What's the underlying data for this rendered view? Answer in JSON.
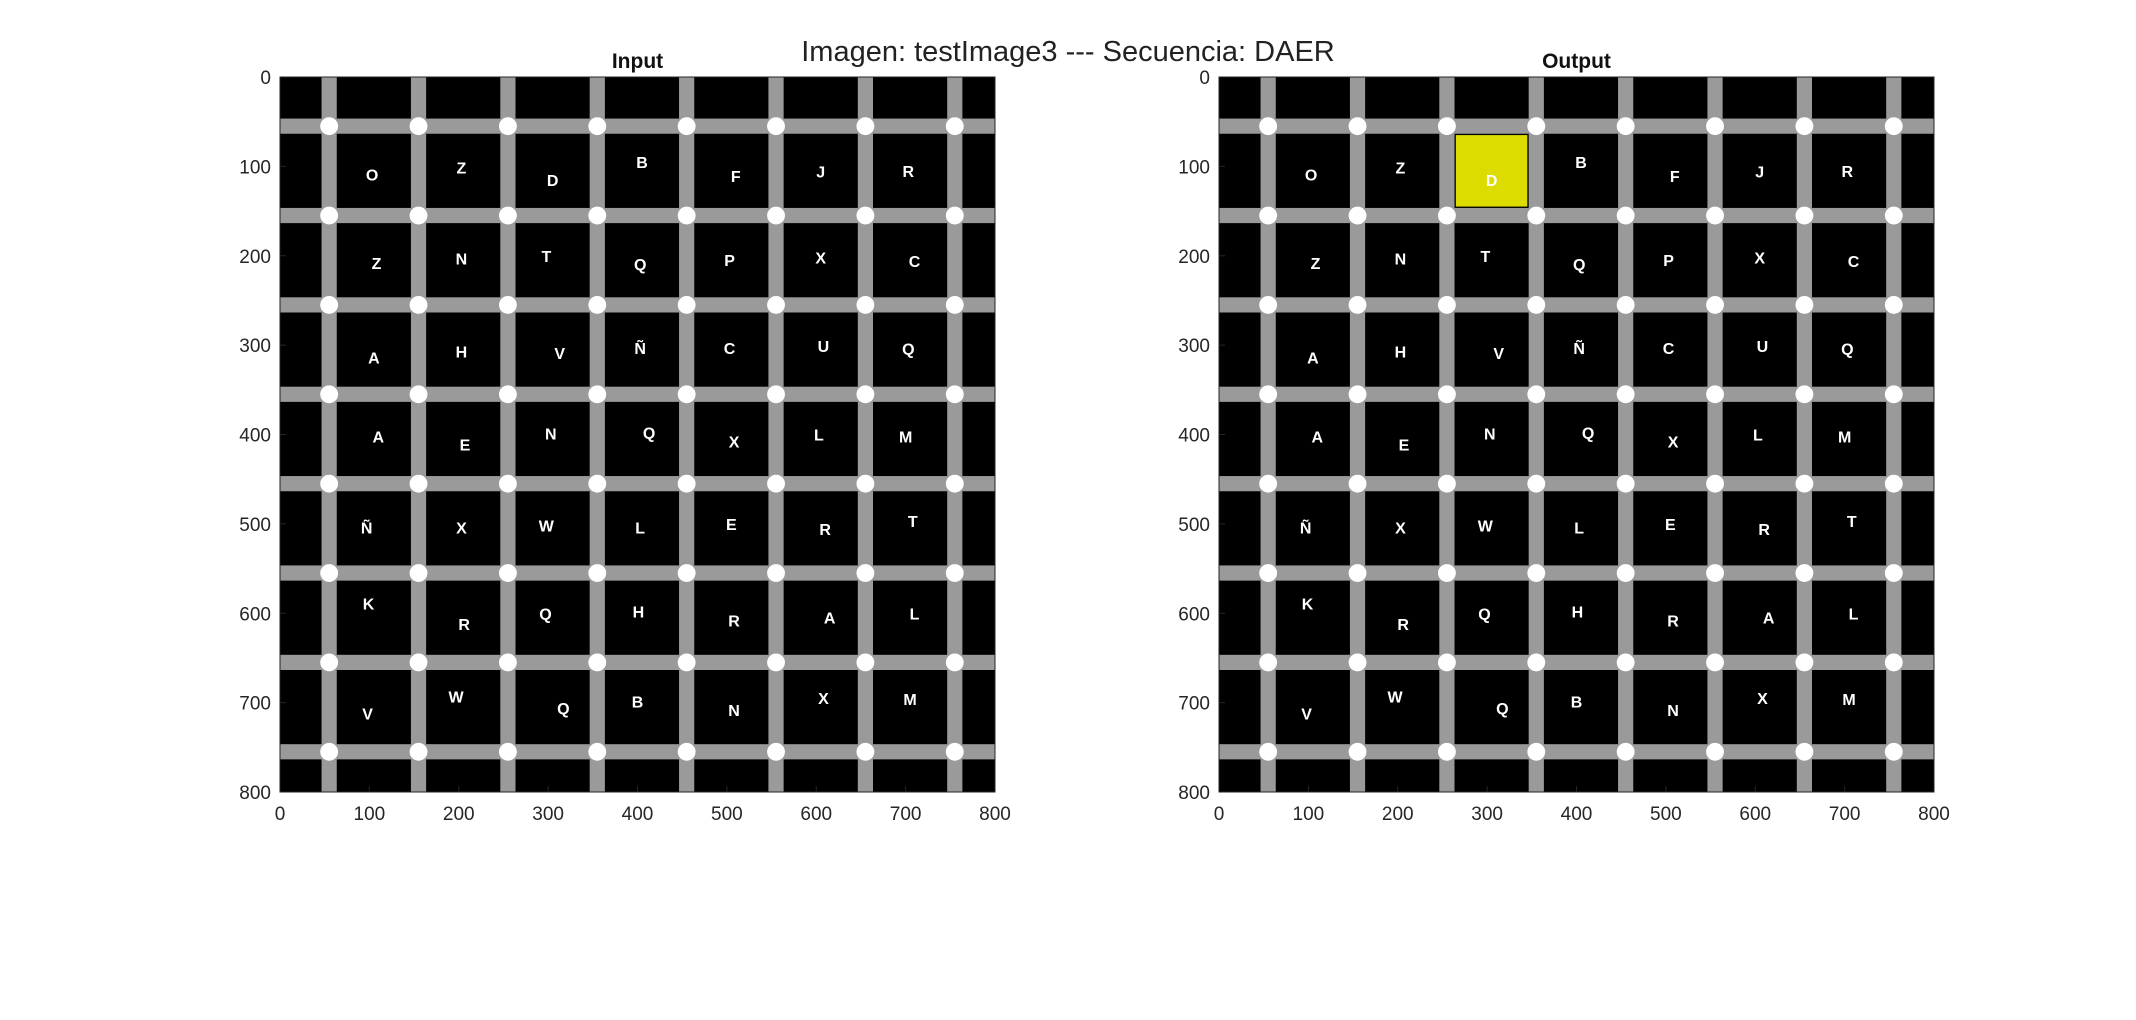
{
  "window_title": "Imagen: testImage3 --- Secuencia: DAER",
  "colors": {
    "background": "#000000",
    "grid_line": "#9a9a9a",
    "intersection_dot": "#ffffff",
    "letter": "#ffffff",
    "highlight": "#dcdc00"
  },
  "axes": {
    "x_ticks": [
      "0",
      "100",
      "200",
      "300",
      "400",
      "500",
      "600",
      "700",
      "800"
    ],
    "y_ticks": [
      "0",
      "100",
      "200",
      "300",
      "400",
      "500",
      "600",
      "700",
      "800"
    ],
    "xlim": [
      0,
      800
    ],
    "ylim": [
      0,
      800
    ],
    "y_direction": "reverse"
  },
  "panels": [
    {
      "title": "Input",
      "highlight": null
    },
    {
      "title": "Output",
      "highlight": {
        "row": 0,
        "col": 2
      }
    }
  ],
  "letters": [
    {
      "ch": "O",
      "x": 103,
      "y": 109
    },
    {
      "ch": "Z",
      "x": 203,
      "y": 101
    },
    {
      "ch": "D",
      "x": 305,
      "y": 115
    },
    {
      "ch": "B",
      "x": 405,
      "y": 95
    },
    {
      "ch": "F",
      "x": 510,
      "y": 111
    },
    {
      "ch": "J",
      "x": 605,
      "y": 106
    },
    {
      "ch": "R",
      "x": 703,
      "y": 105
    },
    {
      "ch": "Z",
      "x": 108,
      "y": 208
    },
    {
      "ch": "N",
      "x": 203,
      "y": 203
    },
    {
      "ch": "T",
      "x": 298,
      "y": 200
    },
    {
      "ch": "Q",
      "x": 403,
      "y": 209
    },
    {
      "ch": "P",
      "x": 503,
      "y": 205
    },
    {
      "ch": "X",
      "x": 605,
      "y": 202
    },
    {
      "ch": "C",
      "x": 710,
      "y": 206
    },
    {
      "ch": "A",
      "x": 105,
      "y": 314
    },
    {
      "ch": "H",
      "x": 203,
      "y": 307
    },
    {
      "ch": "V",
      "x": 313,
      "y": 309
    },
    {
      "ch": "Ñ",
      "x": 403,
      "y": 303
    },
    {
      "ch": "C",
      "x": 503,
      "y": 303
    },
    {
      "ch": "U",
      "x": 608,
      "y": 301
    },
    {
      "ch": "Q",
      "x": 703,
      "y": 304
    },
    {
      "ch": "A",
      "x": 110,
      "y": 402
    },
    {
      "ch": "E",
      "x": 207,
      "y": 411
    },
    {
      "ch": "N",
      "x": 303,
      "y": 399
    },
    {
      "ch": "Q",
      "x": 413,
      "y": 398
    },
    {
      "ch": "X",
      "x": 508,
      "y": 408
    },
    {
      "ch": "L",
      "x": 603,
      "y": 400
    },
    {
      "ch": "M",
      "x": 700,
      "y": 402
    },
    {
      "ch": "Ñ",
      "x": 97,
      "y": 504
    },
    {
      "ch": "X",
      "x": 203,
      "y": 504
    },
    {
      "ch": "W",
      "x": 298,
      "y": 502
    },
    {
      "ch": "L",
      "x": 403,
      "y": 504
    },
    {
      "ch": "E",
      "x": 505,
      "y": 500
    },
    {
      "ch": "R",
      "x": 610,
      "y": 506
    },
    {
      "ch": "T",
      "x": 708,
      "y": 497
    },
    {
      "ch": "K",
      "x": 99,
      "y": 589
    },
    {
      "ch": "R",
      "x": 206,
      "y": 612
    },
    {
      "ch": "Q",
      "x": 297,
      "y": 600
    },
    {
      "ch": "H",
      "x": 401,
      "y": 598
    },
    {
      "ch": "R",
      "x": 508,
      "y": 608
    },
    {
      "ch": "A",
      "x": 615,
      "y": 605
    },
    {
      "ch": "L",
      "x": 710,
      "y": 600
    },
    {
      "ch": "V",
      "x": 98,
      "y": 712
    },
    {
      "ch": "W",
      "x": 197,
      "y": 693
    },
    {
      "ch": "Q",
      "x": 317,
      "y": 706
    },
    {
      "ch": "B",
      "x": 400,
      "y": 699
    },
    {
      "ch": "N",
      "x": 508,
      "y": 708
    },
    {
      "ch": "X",
      "x": 608,
      "y": 695
    },
    {
      "ch": "M",
      "x": 705,
      "y": 696
    }
  ]
}
